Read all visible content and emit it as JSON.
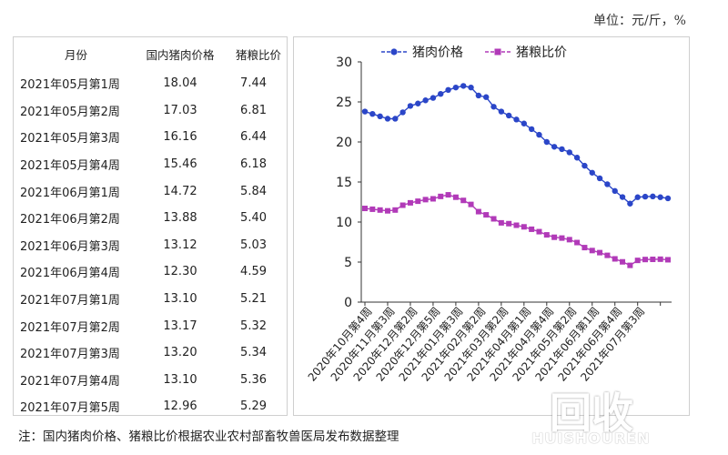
{
  "unit_label": "单位：元/斤，%",
  "note": "注：国内猪肉价格、猪粮比价根据农业农村部畜牧兽医局发布数据整理",
  "watermark": {
    "logo": "回收",
    "text": "HUISHOUREN"
  },
  "table": {
    "headers": [
      "月份",
      "国内猪肉价格",
      "猪粮比价"
    ],
    "rows": [
      [
        "2021年05月第1周",
        "18.04",
        "7.44"
      ],
      [
        "2021年05月第2周",
        "17.03",
        "6.81"
      ],
      [
        "2021年05月第3周",
        "16.16",
        "6.44"
      ],
      [
        "2021年05月第4周",
        "15.46",
        "6.18"
      ],
      [
        "2021年06月第1周",
        "14.72",
        "5.84"
      ],
      [
        "2021年06月第2周",
        "13.88",
        "5.40"
      ],
      [
        "2021年06月第3周",
        "13.12",
        "5.03"
      ],
      [
        "2021年06月第4周",
        "12.30",
        "4.59"
      ],
      [
        "2021年07月第1周",
        "13.10",
        "5.21"
      ],
      [
        "2021年07月第2周",
        "13.17",
        "5.32"
      ],
      [
        "2021年07月第3周",
        "13.20",
        "5.34"
      ],
      [
        "2021年07月第4周",
        "13.10",
        "5.36"
      ],
      [
        "2021年07月第5周",
        "12.96",
        "5.29"
      ]
    ]
  },
  "chart_data": {
    "type": "line",
    "ylim": [
      0,
      30
    ],
    "yticks": [
      0,
      5,
      10,
      15,
      20,
      25,
      30
    ],
    "legend_position": "top",
    "x_tick_labels": [
      "2020年10月第4周",
      "2020年11月第3周",
      "2020年12月第2周",
      "2020年12月第5周",
      "2021年01月第3周",
      "2021年02月第2周",
      "2021年03月第2周",
      "2021年04月第1周",
      "2021年04月第4周",
      "2021年05月第2周",
      "2021年06月第1周",
      "2021年06月第4周",
      "2021年07月第3周"
    ],
    "series": [
      {
        "name": "猪肉价格",
        "color": "#2b46c8",
        "marker": "circle",
        "values": [
          23.8,
          23.5,
          23.2,
          22.9,
          22.9,
          23.7,
          24.5,
          24.8,
          25.2,
          25.5,
          26.0,
          26.5,
          26.8,
          27.0,
          26.8,
          25.8,
          25.6,
          24.4,
          23.8,
          23.3,
          22.8,
          22.3,
          21.6,
          20.9,
          20.0,
          19.4,
          19.1,
          18.7,
          18.04,
          17.03,
          16.16,
          15.46,
          14.72,
          13.88,
          13.12,
          12.3,
          13.1,
          13.17,
          13.2,
          13.1,
          12.96
        ]
      },
      {
        "name": "猪粮比价",
        "color": "#b13ab8",
        "marker": "square",
        "values": [
          11.7,
          11.6,
          11.5,
          11.4,
          11.5,
          12.1,
          12.4,
          12.6,
          12.8,
          12.9,
          13.2,
          13.4,
          13.1,
          12.7,
          12.2,
          11.3,
          10.9,
          10.4,
          9.9,
          9.8,
          9.6,
          9.4,
          9.1,
          8.8,
          8.4,
          8.1,
          8.0,
          7.8,
          7.44,
          6.81,
          6.44,
          6.18,
          5.84,
          5.4,
          5.03,
          4.59,
          5.21,
          5.32,
          5.34,
          5.36,
          5.29
        ]
      }
    ]
  }
}
